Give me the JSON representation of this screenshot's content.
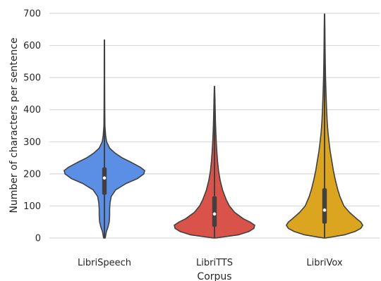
{
  "chart_data": {
    "type": "violin",
    "xlabel": "Corpus",
    "ylabel": "Number of characters per sentence",
    "ylim": [
      -15,
      720
    ],
    "yticks": [
      0,
      100,
      200,
      300,
      400,
      500,
      600,
      700
    ],
    "grid": true,
    "categories": [
      "LibriSpeech",
      "LibriTTS",
      "LibriVox"
    ],
    "series": [
      {
        "category": "LibriSpeech",
        "color": "#5b8fe6",
        "min": 0,
        "max": 617,
        "q1": 135,
        "median": 187,
        "q3": 220,
        "profile": [
          [
            0,
            0.02
          ],
          [
            20,
            0.05
          ],
          [
            35,
            0.09
          ],
          [
            50,
            0.12
          ],
          [
            70,
            0.13
          ],
          [
            90,
            0.13
          ],
          [
            110,
            0.14
          ],
          [
            130,
            0.17
          ],
          [
            150,
            0.28
          ],
          [
            170,
            0.54
          ],
          [
            185,
            0.82
          ],
          [
            200,
            0.98
          ],
          [
            210,
            1.0
          ],
          [
            220,
            0.9
          ],
          [
            235,
            0.68
          ],
          [
            250,
            0.44
          ],
          [
            265,
            0.26
          ],
          [
            280,
            0.13
          ],
          [
            300,
            0.055
          ],
          [
            320,
            0.03
          ],
          [
            350,
            0.012
          ],
          [
            400,
            0.008
          ],
          [
            450,
            0.007
          ],
          [
            500,
            0.006
          ],
          [
            550,
            0.005
          ],
          [
            617,
            0.004
          ]
        ]
      },
      {
        "category": "LibriTTS",
        "color": "#d9534a",
        "min": 0,
        "max": 473,
        "q1": 35,
        "median": 75,
        "q3": 130,
        "profile": [
          [
            0,
            0.02
          ],
          [
            10,
            0.6
          ],
          [
            20,
            0.85
          ],
          [
            30,
            0.98
          ],
          [
            40,
            1.0
          ],
          [
            50,
            0.88
          ],
          [
            60,
            0.72
          ],
          [
            80,
            0.5
          ],
          [
            100,
            0.37
          ],
          [
            120,
            0.29
          ],
          [
            150,
            0.2
          ],
          [
            180,
            0.14
          ],
          [
            210,
            0.1
          ],
          [
            240,
            0.075
          ],
          [
            270,
            0.058
          ],
          [
            300,
            0.044
          ],
          [
            330,
            0.033
          ],
          [
            360,
            0.025
          ],
          [
            400,
            0.017
          ],
          [
            440,
            0.01
          ],
          [
            473,
            0.004
          ]
        ]
      },
      {
        "category": "LibriVox",
        "color": "#dba51f",
        "min": 0,
        "max": 698,
        "q1": 45,
        "median": 87,
        "q3": 155,
        "profile": [
          [
            0,
            0.02
          ],
          [
            10,
            0.5
          ],
          [
            20,
            0.75
          ],
          [
            30,
            0.9
          ],
          [
            40,
            0.95
          ],
          [
            50,
            0.9
          ],
          [
            60,
            0.8
          ],
          [
            80,
            0.62
          ],
          [
            100,
            0.48
          ],
          [
            130,
            0.38
          ],
          [
            150,
            0.33
          ],
          [
            180,
            0.27
          ],
          [
            210,
            0.22
          ],
          [
            240,
            0.18
          ],
          [
            270,
            0.14
          ],
          [
            300,
            0.11
          ],
          [
            330,
            0.085
          ],
          [
            360,
            0.066
          ],
          [
            400,
            0.05
          ],
          [
            450,
            0.036
          ],
          [
            500,
            0.025
          ],
          [
            550,
            0.018
          ],
          [
            600,
            0.012
          ],
          [
            650,
            0.008
          ],
          [
            698,
            0.004
          ]
        ]
      }
    ]
  }
}
